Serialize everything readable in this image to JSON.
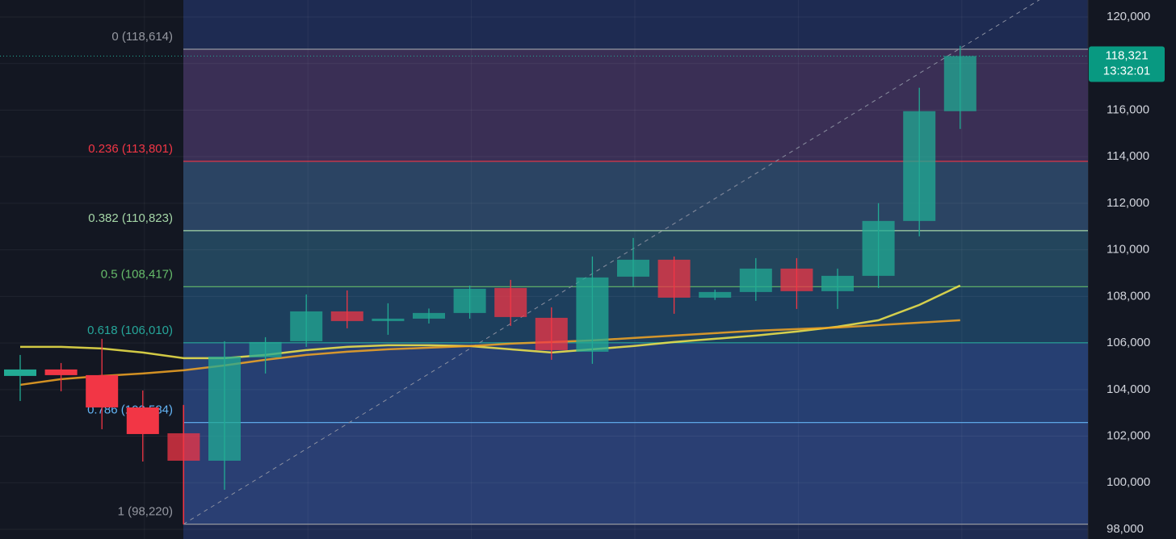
{
  "chart_data": {
    "type": "candlestick",
    "ylim": [
      98000,
      120000
    ],
    "yticks": [
      {
        "value": 98000,
        "label": "98,000"
      },
      {
        "value": 100000,
        "label": "100,000"
      },
      {
        "value": 102000,
        "label": "102,000"
      },
      {
        "value": 104000,
        "label": "104,000"
      },
      {
        "value": 106000,
        "label": "106,000"
      },
      {
        "value": 108000,
        "label": "108,000"
      },
      {
        "value": 110000,
        "label": "110,000"
      },
      {
        "value": 112000,
        "label": "112,000"
      },
      {
        "value": 114000,
        "label": "114,000"
      },
      {
        "value": 116000,
        "label": "116,000"
      },
      {
        "value": 118000,
        "label": "118,000"
      },
      {
        "value": 120000,
        "label": "120,000"
      }
    ],
    "grid": true,
    "up_color": "#22ab94",
    "down_color": "#f23645",
    "candles": {
      "open": [
        104586,
        104863,
        104620,
        103234,
        102124,
        100946,
        105383,
        106076,
        107358,
        106942,
        107046,
        107289,
        108363,
        107081,
        105625,
        108849,
        109576,
        107947,
        108190,
        109195,
        108225,
        108884,
        111240,
        115954
      ],
      "high": [
        105487,
        105140,
        106180,
        103961,
        103338,
        106076,
        106249,
        108086,
        108259,
        107705,
        107480,
        108467,
        108710,
        107532,
        109715,
        110512,
        109715,
        108294,
        109645,
        109645,
        109195,
        112003,
        116959,
        118761
      ],
      "low": [
        103511,
        103927,
        102298,
        100911,
        98208,
        99698,
        104690,
        105833,
        106630,
        106353,
        106838,
        107046,
        106734,
        105279,
        105105,
        108432,
        107254,
        107850,
        107809,
        107462,
        107462,
        108363,
        110582,
        115191
      ],
      "close": [
        104863,
        104620,
        103234,
        102090,
        100946,
        105417,
        106042,
        107358,
        106942,
        107046,
        107289,
        108329,
        107115,
        105694,
        108814,
        109576,
        107947,
        108190,
        109195,
        108225,
        108884,
        111240,
        115954,
        118321
      ]
    },
    "series": [
      {
        "color": "#f5e94a",
        "values": [
          105833,
          105833,
          105764,
          105591,
          105348,
          105348,
          105487,
          105694,
          105833,
          105902,
          105902,
          105868,
          105729,
          105591,
          105729,
          105868,
          106041,
          106180,
          106318,
          106492,
          106700,
          106977,
          107635,
          108467
        ]
      },
      {
        "color": "#f5a623",
        "values": [
          104204,
          104447,
          104586,
          104690,
          104828,
          105036,
          105279,
          105487,
          105625,
          105729,
          105798,
          105868,
          105972,
          106041,
          106110,
          106214,
          106318,
          106422,
          106526,
          106596,
          106665,
          106769,
          106873,
          106977
        ]
      }
    ],
    "fib_levels": [
      {
        "value": 118614,
        "label": "0 (118,614)",
        "color": "#9598a1",
        "fill": "#3a2f55"
      },
      {
        "value": 113801,
        "label": "0.236 (113,801)",
        "color": "#f23645",
        "fill": "#2b4463"
      },
      {
        "value": 110823,
        "label": "0.382 (110,823)",
        "color": "#a5d6a7",
        "fill": "#23455c"
      },
      {
        "value": 108417,
        "label": "0.5 (108,417)",
        "color": "#66bb6a",
        "fill": "#1d3f5d"
      },
      {
        "value": 106010,
        "label": "0.618 (106,010)",
        "color": "#26a69a",
        "fill": "#263f72"
      },
      {
        "value": 102584,
        "label": "0.786 (102,584)",
        "color": "#64b5f6",
        "fill": "#2a3f73"
      },
      {
        "value": 98220,
        "label": "1 (98,220)",
        "color": "#9598a1"
      }
    ],
    "last_price": {
      "value": 118321,
      "label": "118,321"
    },
    "countdown": "13:32:01"
  }
}
